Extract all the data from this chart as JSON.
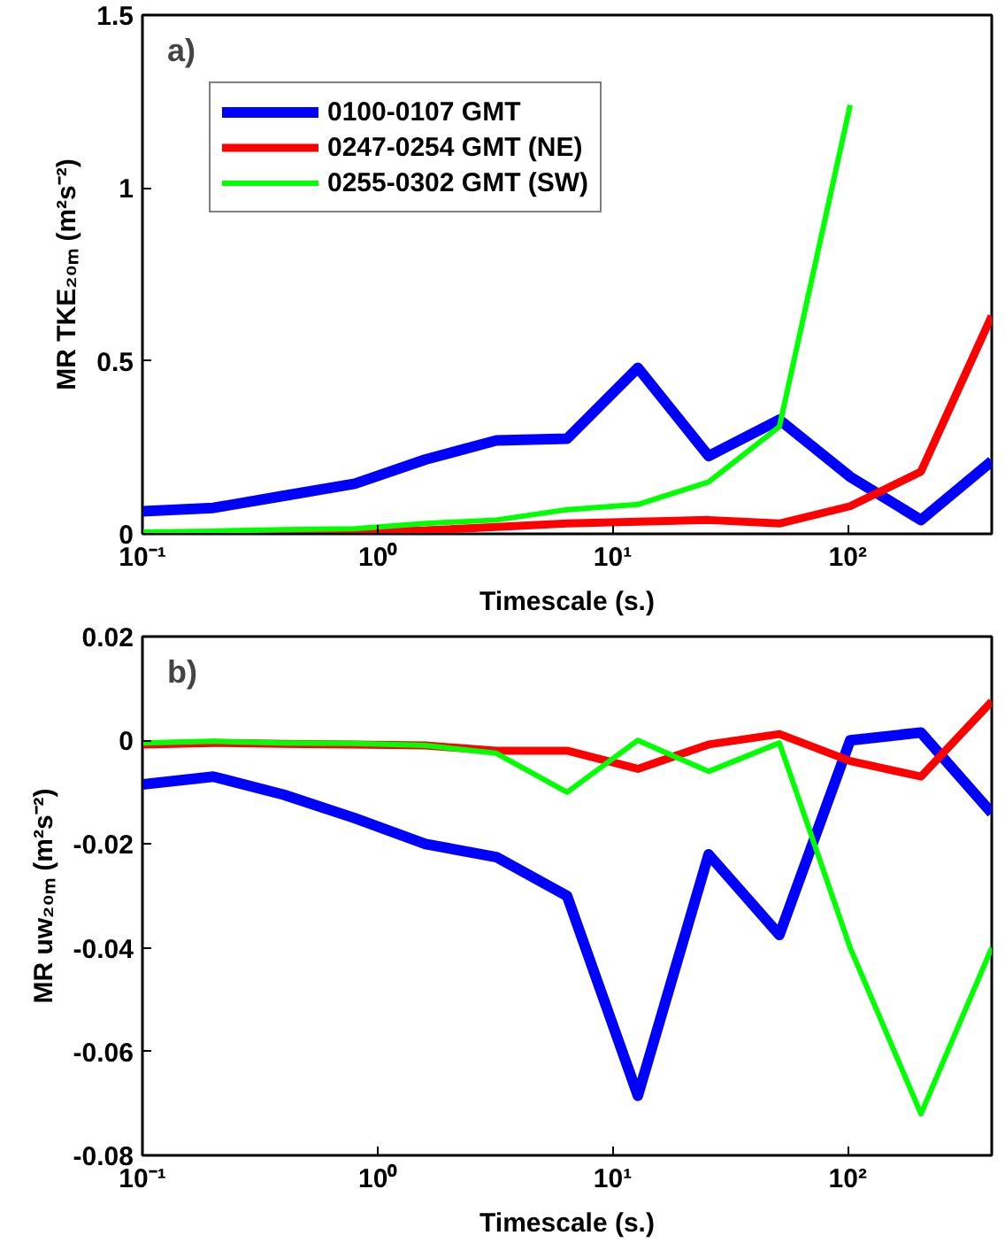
{
  "chart_data": [
    {
      "type": "line",
      "xlabel": "Timescale (s.)",
      "ylabel": "MR TKE₂₀ₘ (m²s⁻²)",
      "annotations": [
        "a)"
      ],
      "log": "x",
      "grid": false,
      "legend": "top left",
      "x": [
        0.1,
        0.2,
        0.4,
        0.8,
        1.6,
        3.2,
        6.4,
        12.8,
        25.6,
        51.2,
        102.4,
        204.8,
        409.6
      ],
      "xlim": [
        0.1,
        409.6
      ],
      "ylim": [
        0,
        1.5
      ],
      "xticks": [
        {
          "value": 0.1,
          "label": "10⁻¹"
        },
        {
          "value": 1,
          "label": "10⁰"
        },
        {
          "value": 10,
          "label": "10¹"
        },
        {
          "value": 100,
          "label": "10²"
        }
      ],
      "yticks": [
        0,
        0.5,
        1,
        1.5
      ],
      "series": [
        {
          "name": "0100-0107 GMT",
          "color": "#0000ff",
          "values": [
            0.065,
            0.075,
            0.11,
            0.145,
            0.215,
            0.27,
            0.275,
            0.48,
            0.225,
            0.33,
            0.165,
            0.04,
            0.21
          ]
        },
        {
          "name": "0247-0254 GMT (NE)",
          "color": "#ff0000",
          "values": [
            0,
            0,
            0.003,
            0.005,
            0.01,
            0.02,
            0.03,
            0.035,
            0.04,
            0.03,
            0.08,
            0.18,
            0.63
          ]
        },
        {
          "name": "0255-0302 GMT (SW)",
          "color": "#00ff00",
          "values": [
            0.005,
            0.008,
            0.012,
            0.015,
            0.03,
            0.04,
            0.07,
            0.085,
            0.15,
            0.31,
            1.24,
            null,
            null
          ]
        }
      ]
    },
    {
      "type": "line",
      "xlabel": "Timescale (s.)",
      "ylabel": "MR uw₂₀ₘ (m²s⁻²)",
      "annotations": [
        "b)"
      ],
      "log": "x",
      "grid": false,
      "x": [
        0.1,
        0.2,
        0.4,
        0.8,
        1.6,
        3.2,
        6.4,
        12.8,
        25.6,
        51.2,
        102.4,
        204.8,
        409.6
      ],
      "xlim": [
        0.1,
        409.6
      ],
      "ylim": [
        -0.08,
        0.02
      ],
      "xticks": [
        {
          "value": 0.1,
          "label": "10⁻¹"
        },
        {
          "value": 1,
          "label": "10⁰"
        },
        {
          "value": 10,
          "label": "10¹"
        },
        {
          "value": 100,
          "label": "10²"
        }
      ],
      "yticks": [
        -0.08,
        -0.06,
        -0.04,
        -0.02,
        0,
        0.02
      ],
      "series": [
        {
          "color": "#0000ff",
          "values": [
            -0.0085,
            -0.007,
            -0.0105,
            -0.015,
            -0.02,
            -0.0225,
            -0.03,
            -0.0685,
            -0.022,
            -0.0375,
            0,
            0.0015,
            -0.014
          ]
        },
        {
          "color": "#ff0000",
          "values": [
            -0.0008,
            -0.0005,
            -0.0007,
            -0.0008,
            -0.001,
            -0.002,
            -0.002,
            -0.0055,
            -0.0008,
            0.0012,
            -0.004,
            -0.007,
            0.0075
          ]
        },
        {
          "color": "#00ff00",
          "values": [
            -0.0005,
            -0.0002,
            -0.0005,
            -0.0006,
            -0.001,
            -0.0025,
            -0.01,
            0,
            -0.006,
            -0.0005,
            -0.04,
            -0.072,
            -0.04
          ]
        }
      ]
    }
  ]
}
